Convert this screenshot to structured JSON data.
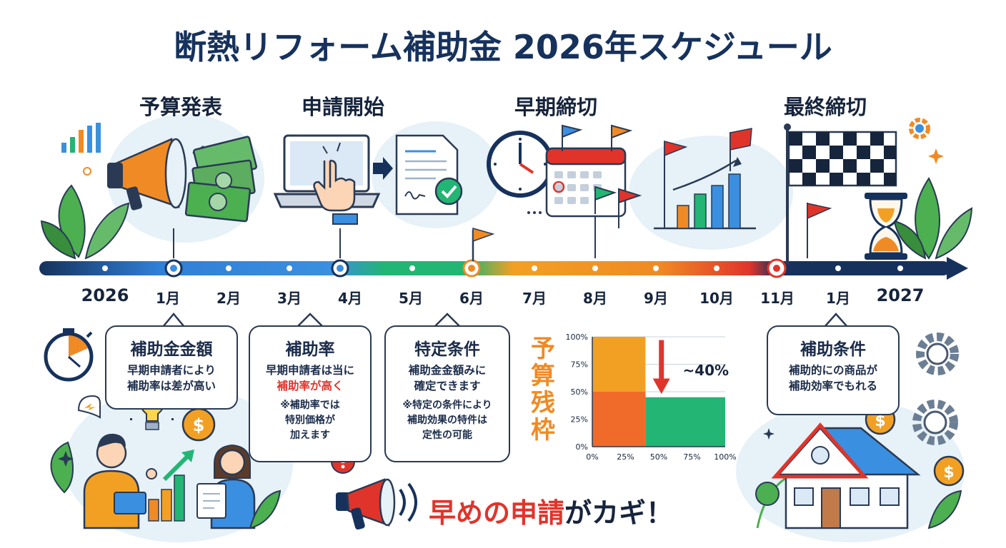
{
  "title": "断熱リフォーム補助金 2026年スケジュール",
  "phases": [
    {
      "label": "予算発表"
    },
    {
      "label": "申請開始"
    },
    {
      "label": "早期締切"
    },
    {
      "label": "最終締切"
    }
  ],
  "timeline": {
    "labels": [
      "2026",
      "1月",
      "2月",
      "3月",
      "4月",
      "5月",
      "6月",
      "7月",
      "8月",
      "9月",
      "10月",
      "11月",
      "1月",
      "2027"
    ]
  },
  "cards": [
    {
      "title": "補助金金額",
      "lines": [
        "早期申請者により",
        "補助率は差が高い"
      ]
    },
    {
      "title": "補助率",
      "lines": [
        "早期申請者は当に"
      ],
      "highlight": "補助率が高く",
      "note": [
        "※補助率では",
        "特別価格が",
        "加えます"
      ]
    },
    {
      "title": "特定条件",
      "lines": [
        "補助金金額みに",
        "確定できます"
      ],
      "note": [
        "※特定の条件により",
        "補助効果の特件は",
        "定性の可能"
      ]
    },
    {
      "title": "補助条件",
      "lines": [
        "補助的にの商品が",
        "補助効率でもれる"
      ]
    }
  ],
  "budget_chart": {
    "vertical_label": "予算残枠",
    "annotation": "~40%"
  },
  "chart_data": {
    "type": "area",
    "title": "",
    "xlabel": "",
    "ylabel": "予算残枠",
    "x_ticks": [
      "0%",
      "25%",
      "50%",
      "75%",
      "100%"
    ],
    "y_ticks": [
      "0%",
      "25%",
      "50%",
      "75%",
      "100%"
    ],
    "xlim": [
      0,
      100
    ],
    "ylim": [
      0,
      100
    ],
    "series": [
      {
        "x_from": 0,
        "x_to": 40,
        "value": 100
      },
      {
        "x_from": 40,
        "x_to": 100,
        "value": 45
      }
    ],
    "annotation": "~40%",
    "grid": true
  },
  "cta": {
    "highlight": "早めの申請",
    "rest": "がカギ！"
  },
  "colors": {
    "navy": "#16325c",
    "blue": "#3b8fe0",
    "green": "#22b573",
    "orange": "#f08a24",
    "red": "#e0342b"
  }
}
